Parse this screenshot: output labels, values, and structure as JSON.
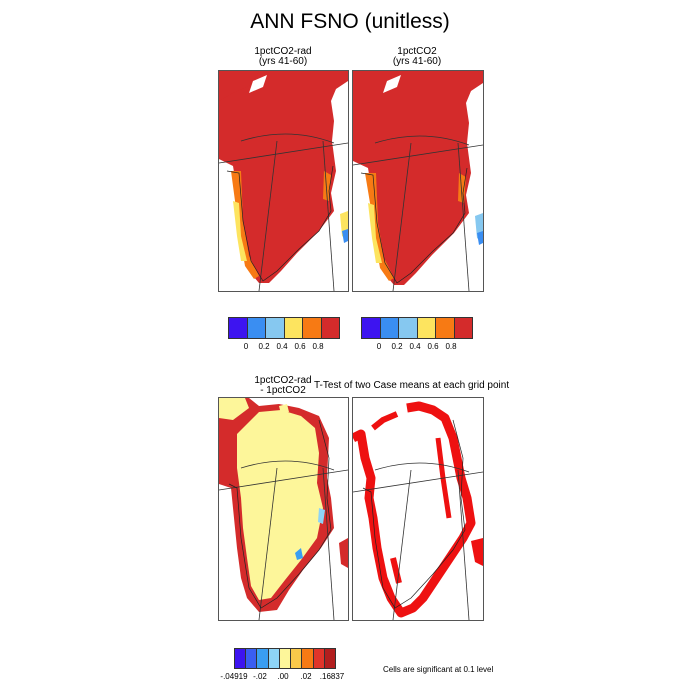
{
  "figure": {
    "title": "ANN FSNO (unitless)"
  },
  "panels": {
    "p1": {
      "title": "1pctCO2-rad\n(yrs 41-60)"
    },
    "p2": {
      "title": "1pctCO2\n(yrs 41-60)"
    },
    "p3": {
      "title": "1pctCO2-rad\n- 1pctCO2"
    },
    "p4": {
      "title": "T-Test of two Case means at each grid point"
    }
  },
  "colorbars": {
    "top": {
      "colors": [
        "#3d14f0",
        "#3a8ef2",
        "#86c8f0",
        "#fde45f",
        "#f77a14",
        "#d42b2b"
      ],
      "labels": [
        "0",
        "0.2",
        "0.4",
        "0.6",
        "0.8"
      ]
    },
    "diff": {
      "colors": [
        "#3d14f0",
        "#3a5ef2",
        "#3a9ef2",
        "#8ed4f6",
        "#fdf69a",
        "#f9c84a",
        "#f77a14",
        "#e0342a",
        "#b21e1e"
      ],
      "labels": [
        "-.04919",
        "-.02",
        ".00",
        ".02",
        ".16837"
      ]
    }
  },
  "note": "Cells are significant at 0.1 level",
  "colors": {
    "ice_high": "#d42b2b",
    "ice_mid": "#f77a14",
    "ice_low": "#fde45f",
    "diff_pos": "#fdf69a",
    "signif": "#ee1111"
  }
}
